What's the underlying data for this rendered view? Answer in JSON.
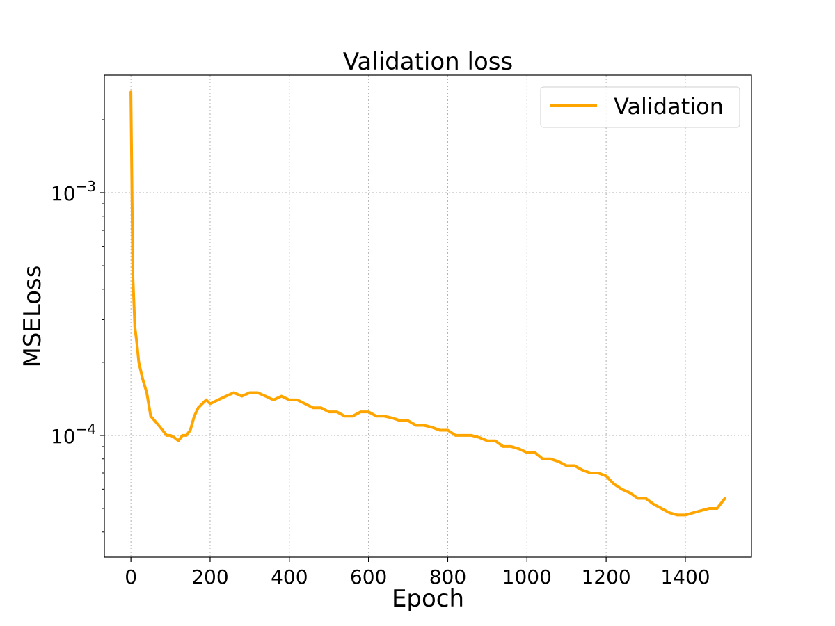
{
  "chart_data": {
    "type": "line",
    "title": "Validation loss",
    "xlabel": "Epoch",
    "ylabel": "MSELoss",
    "xlim": [
      -67,
      1567
    ],
    "ylim": [
      3.15e-05,
      0.00305
    ],
    "yscale": "log",
    "grid": true,
    "legend_position": "top-right",
    "x_ticks": [
      0,
      200,
      400,
      600,
      800,
      1000,
      1200,
      1400
    ],
    "x_tick_labels": [
      "0",
      "200",
      "400",
      "600",
      "800",
      "1000",
      "1200",
      "1400"
    ],
    "y_ticks": [
      0.001,
      0.0001
    ],
    "y_tick_labels": [
      {
        "base": "10",
        "exp": "−3"
      },
      {
        "base": "10",
        "exp": "−4"
      }
    ],
    "series": [
      {
        "name": "Validation",
        "color": "#ffa500",
        "x": [
          0,
          5,
          10,
          15,
          20,
          30,
          40,
          50,
          60,
          70,
          80,
          90,
          100,
          110,
          120,
          130,
          140,
          150,
          160,
          170,
          180,
          190,
          200,
          220,
          240,
          260,
          280,
          300,
          320,
          340,
          360,
          380,
          400,
          420,
          440,
          460,
          480,
          500,
          520,
          540,
          560,
          580,
          600,
          620,
          640,
          660,
          680,
          700,
          720,
          740,
          760,
          780,
          800,
          820,
          840,
          860,
          880,
          900,
          920,
          940,
          960,
          980,
          1000,
          1020,
          1040,
          1060,
          1080,
          1100,
          1120,
          1140,
          1160,
          1180,
          1200,
          1220,
          1240,
          1260,
          1280,
          1300,
          1320,
          1340,
          1360,
          1380,
          1400,
          1420,
          1440,
          1460,
          1480,
          1500
        ],
        "y": [
          0.0026,
          0.00045,
          0.00028,
          0.00024,
          0.0002,
          0.00017,
          0.00015,
          0.00012,
          0.000115,
          0.00011,
          0.000105,
          0.0001,
          0.0001,
          9.8e-05,
          9.5e-05,
          0.0001,
          0.0001,
          0.000105,
          0.00012,
          0.00013,
          0.000135,
          0.00014,
          0.000135,
          0.00014,
          0.000145,
          0.00015,
          0.000145,
          0.00015,
          0.00015,
          0.000145,
          0.00014,
          0.000145,
          0.00014,
          0.00014,
          0.000135,
          0.00013,
          0.00013,
          0.000125,
          0.000125,
          0.00012,
          0.00012,
          0.000125,
          0.000125,
          0.00012,
          0.00012,
          0.000118,
          0.000115,
          0.000115,
          0.00011,
          0.00011,
          0.000108,
          0.000105,
          0.000105,
          0.0001,
          0.0001,
          0.0001,
          9.8e-05,
          9.5e-05,
          9.5e-05,
          9e-05,
          9e-05,
          8.8e-05,
          8.5e-05,
          8.5e-05,
          8e-05,
          8e-05,
          7.8e-05,
          7.5e-05,
          7.5e-05,
          7.2e-05,
          7e-05,
          7e-05,
          6.8e-05,
          6.3e-05,
          6e-05,
          5.8e-05,
          5.5e-05,
          5.5e-05,
          5.2e-05,
          5e-05,
          4.8e-05,
          4.7e-05,
          4.7e-05,
          4.8e-05,
          4.9e-05,
          5e-05,
          5e-05,
          5.5e-05
        ]
      }
    ]
  }
}
